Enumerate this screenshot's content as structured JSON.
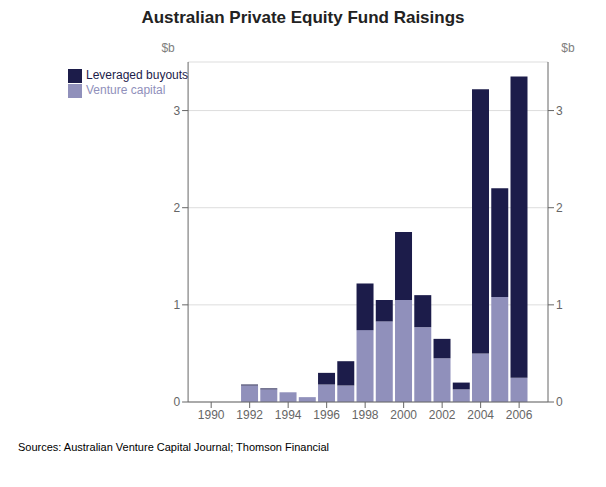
{
  "chart_data": {
    "type": "bar",
    "title": "Australian Private Equity Fund Raisings",
    "ylabel": "$b",
    "y2label": "$b",
    "annotations": [
      "Sources: Australian Venture Capital Journal; Thomson Financial"
    ],
    "x": [
      1990,
      1991,
      1992,
      1993,
      1994,
      1995,
      1996,
      1997,
      1998,
      1999,
      2000,
      2001,
      2002,
      2003,
      2004,
      2005,
      2006
    ],
    "series": [
      {
        "name": "Venture capital",
        "color": "#9090bb",
        "values": [
          0.0,
          0.0,
          0.17,
          0.13,
          0.1,
          0.05,
          0.18,
          0.17,
          0.74,
          0.83,
          1.05,
          0.77,
          0.45,
          0.13,
          0.5,
          1.08,
          0.25
        ]
      },
      {
        "name": "Leveraged buyouts",
        "color": "#1c1c4a",
        "values": [
          0.0,
          0.0,
          0.01,
          0.01,
          0.0,
          0.0,
          0.12,
          0.25,
          0.48,
          0.22,
          0.7,
          0.33,
          0.2,
          0.07,
          2.72,
          1.12,
          3.1
        ]
      }
    ],
    "stacked": true,
    "xlim": [
      1988.8,
      2007.5
    ],
    "xticks": [
      1990,
      1992,
      1994,
      1996,
      1998,
      2000,
      2002,
      2004,
      2006
    ],
    "ylim": [
      0,
      3.5
    ],
    "yticks": [
      0,
      1,
      2,
      3
    ],
    "y2lim": [
      0,
      3.5
    ],
    "y2ticks": [
      0,
      1,
      2,
      3
    ],
    "grid": true,
    "legend": "upper left"
  }
}
